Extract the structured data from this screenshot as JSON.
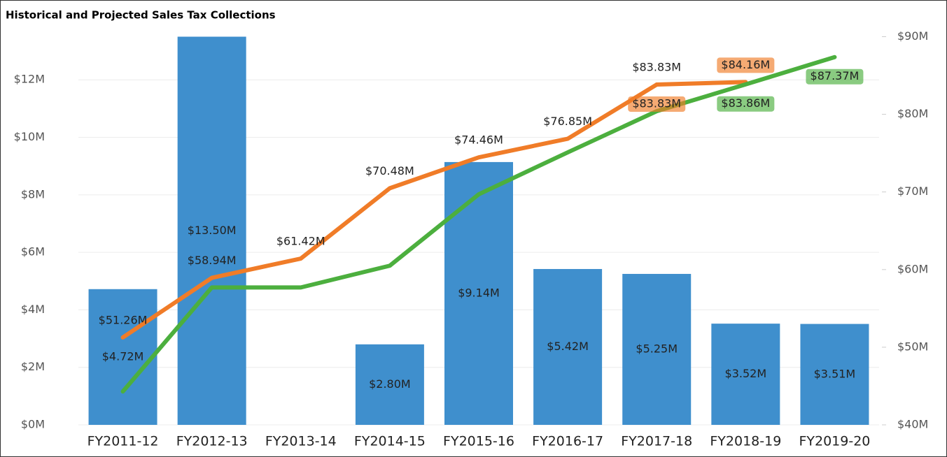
{
  "chart_data": {
    "type": "bar-line",
    "title": "Historical and Projected Sales Tax Collections",
    "categories": [
      "FY2011-12",
      "FY2012-13",
      "FY2013-14",
      "FY2014-15",
      "FY2015-16",
      "FY2016-17",
      "FY2017-18",
      "FY2018-19",
      "FY2019-20"
    ],
    "bars": {
      "color": "#3f8fcd",
      "values": [
        4.72,
        13.5,
        null,
        2.8,
        9.14,
        5.42,
        5.25,
        3.52,
        3.51
      ],
      "value_labels": [
        "$4.72M",
        "$13.50M",
        null,
        "$2.80M",
        "$9.14M",
        "$5.42M",
        "$5.25M",
        "$3.52M",
        "$3.51M"
      ]
    },
    "series": [
      {
        "color": "#f07c28",
        "axis": "y2",
        "values": [
          51.26,
          58.94,
          61.42,
          70.48,
          74.46,
          76.85,
          83.83,
          null,
          null
        ],
        "value_labels": [
          "$51.26M",
          "$58.94M",
          "$61.42M",
          "$70.48M",
          "$74.46M",
          "$76.85M",
          "$83.83M",
          null,
          null
        ]
      },
      {
        "color": "#f07c28",
        "axis": "y2",
        "boxed": true,
        "values": [
          null,
          null,
          null,
          null,
          null,
          null,
          83.83,
          84.16,
          null
        ],
        "value_labels": [
          null,
          null,
          null,
          null,
          null,
          null,
          "$83.83M",
          "$84.16M",
          null
        ]
      },
      {
        "color": "#4caf3e",
        "axis": "y2",
        "boxed": true,
        "values": [
          44.3,
          57.7,
          57.7,
          60.5,
          69.7,
          75.1,
          80.4,
          83.86,
          87.37
        ],
        "value_labels": [
          null,
          null,
          null,
          null,
          null,
          null,
          null,
          "$83.86M",
          "$87.37M"
        ]
      }
    ],
    "ylim": [
      0,
      13.5
    ],
    "yticks": [
      {
        "value": 0,
        "label": "$0M"
      },
      {
        "value": 2,
        "label": "$2M"
      },
      {
        "value": 4,
        "label": "$4M"
      },
      {
        "value": 6,
        "label": "$6M"
      },
      {
        "value": 8,
        "label": "$8M"
      },
      {
        "value": 10,
        "label": "$10M"
      },
      {
        "value": 12,
        "label": "$12M"
      }
    ],
    "y2lim": [
      40,
      90
    ],
    "y2ticks": [
      {
        "value": 40,
        "label": "$40M"
      },
      {
        "value": 50,
        "label": "$50M"
      },
      {
        "value": 60,
        "label": "$60M"
      },
      {
        "value": 70,
        "label": "$70M"
      },
      {
        "value": 80,
        "label": "$80M"
      },
      {
        "value": 90,
        "label": "$90M"
      }
    ],
    "grid": true
  }
}
